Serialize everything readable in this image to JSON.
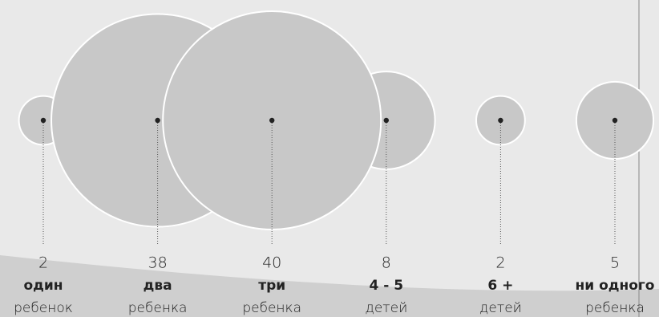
{
  "chart_data": {
    "type": "bubble",
    "categories": [
      "один",
      "два",
      "три",
      "4 - 5",
      "6 +",
      "ни одного"
    ],
    "sublabels": [
      "ребенок",
      "ребенка",
      "ребенка",
      "детей",
      "детей",
      "ребенка"
    ],
    "values": [
      2,
      38,
      40,
      8,
      2,
      5
    ],
    "color": "#c8c8c8"
  }
}
